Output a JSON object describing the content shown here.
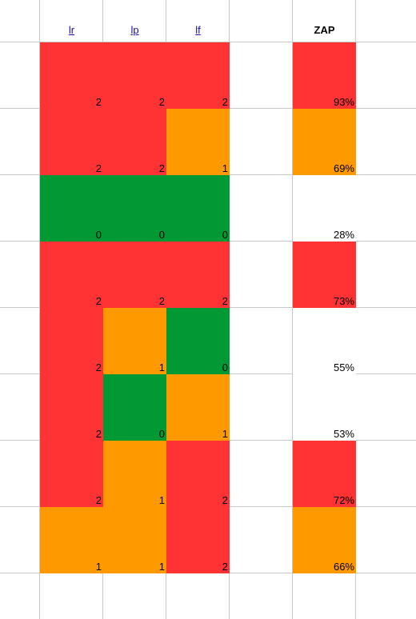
{
  "sheet": {
    "headers": {
      "col1": "lr",
      "col2": "lp",
      "col3": "lf",
      "zap": "ZAP"
    },
    "colors": {
      "red": "#ff3333",
      "orange": "#ff9900",
      "green": "#009933",
      "white": "#ffffff"
    },
    "rows": [
      {
        "lr": "2",
        "lp": "2",
        "lf": "2",
        "zap": "93%",
        "c": [
          "red",
          "red",
          "red"
        ],
        "zc": "red"
      },
      {
        "lr": "2",
        "lp": "2",
        "lf": "1",
        "zap": "69%",
        "c": [
          "red",
          "red",
          "orange"
        ],
        "zc": "orange"
      },
      {
        "lr": "0",
        "lp": "0",
        "lf": "0",
        "zap": "28%",
        "c": [
          "green",
          "green",
          "green"
        ],
        "zc": "white"
      },
      {
        "lr": "2",
        "lp": "2",
        "lf": "2",
        "zap": "73%",
        "c": [
          "red",
          "red",
          "red"
        ],
        "zc": "red"
      },
      {
        "lr": "2",
        "lp": "1",
        "lf": "0",
        "zap": "55%",
        "c": [
          "red",
          "orange",
          "green"
        ],
        "zc": "white"
      },
      {
        "lr": "2",
        "lp": "0",
        "lf": "1",
        "zap": "53%",
        "c": [
          "red",
          "green",
          "orange"
        ],
        "zc": "white"
      },
      {
        "lr": "2",
        "lp": "1",
        "lf": "2",
        "zap": "72%",
        "c": [
          "red",
          "orange",
          "red"
        ],
        "zc": "red"
      },
      {
        "lr": "1",
        "lp": "1",
        "lf": "2",
        "zap": "66%",
        "c": [
          "orange",
          "orange",
          "red"
        ],
        "zc": "orange"
      }
    ]
  }
}
